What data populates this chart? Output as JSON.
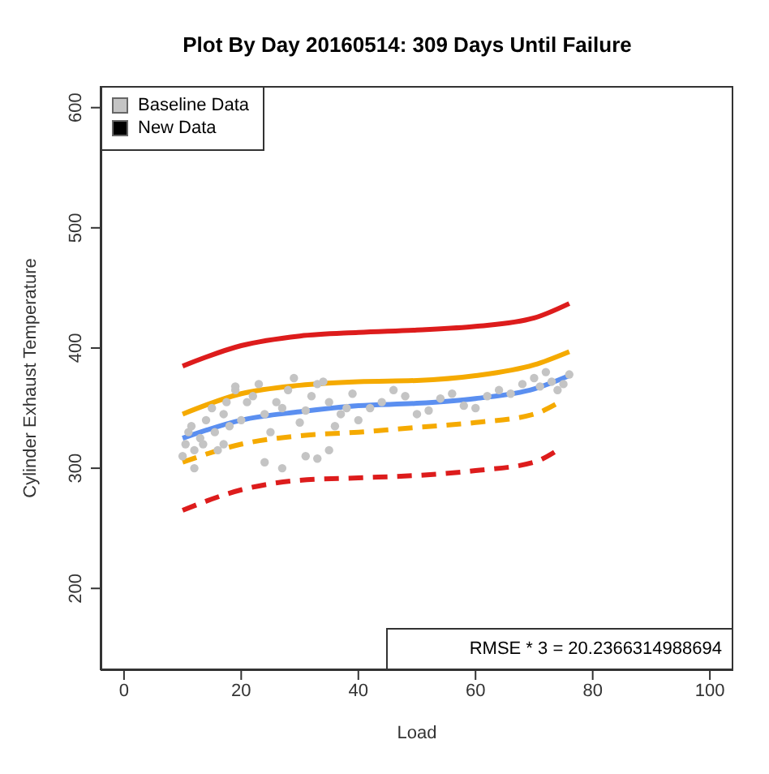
{
  "chart_data": {
    "type": "line",
    "title": "Plot By Day 20160514: 309 Days Until Failure",
    "xlabel": "Load",
    "ylabel": "Cylinder Exhaust Temperature",
    "xlim": [
      -4,
      104
    ],
    "xticks": [
      0,
      20,
      40,
      60,
      80,
      100
    ],
    "ylim": [
      132,
      618
    ],
    "yticks": [
      200,
      300,
      400,
      500,
      600
    ],
    "grid": false,
    "legend": "top left",
    "annotations": [
      "RMSE * 3 = 20.2366314988694"
    ],
    "series": [
      {
        "name": "Baseline Data",
        "type": "scatter",
        "marker": "circle",
        "color": "#c4c4c4",
        "x": [
          10,
          10.5,
          11,
          11.5,
          12,
          12,
          13,
          13.5,
          14,
          15,
          15.5,
          16,
          17,
          17.5,
          18,
          19,
          20,
          21,
          22,
          23,
          24,
          25,
          26,
          27,
          28,
          29,
          30,
          31,
          32,
          33,
          34,
          35,
          36,
          37,
          38,
          39,
          40,
          42,
          44,
          46,
          48,
          50,
          52,
          54,
          56,
          58,
          60,
          62,
          64,
          66,
          68,
          70,
          71,
          72,
          73,
          74,
          75,
          76,
          24,
          27,
          31,
          33,
          35,
          17,
          19
        ],
        "values": [
          310,
          320,
          330,
          335,
          300,
          315,
          325,
          320,
          340,
          350,
          330,
          315,
          345,
          355,
          335,
          365,
          340,
          355,
          360,
          370,
          345,
          330,
          355,
          350,
          365,
          375,
          338,
          348,
          360,
          370,
          372,
          355,
          335,
          345,
          350,
          362,
          340,
          350,
          355,
          365,
          360,
          345,
          348,
          358,
          362,
          352,
          350,
          360,
          365,
          362,
          370,
          375,
          368,
          380,
          372,
          365,
          370,
          378,
          305,
          300,
          310,
          308,
          315,
          320,
          368
        ]
      },
      {
        "name": "New Data",
        "type": "scatter",
        "marker": "square",
        "color": "#000000"
      },
      {
        "line_style": "solid",
        "color": "#dd1c1c",
        "x": [
          10,
          20,
          30,
          40,
          50,
          60,
          70,
          76
        ],
        "values": [
          385,
          402,
          410,
          413,
          415,
          418,
          425,
          437
        ]
      },
      {
        "line_style": "solid",
        "color": "#f5aa00",
        "x": [
          10,
          20,
          30,
          40,
          50,
          60,
          70,
          76
        ],
        "values": [
          345,
          362,
          369,
          372,
          373,
          377,
          386,
          397
        ]
      },
      {
        "line_style": "solid",
        "color": "#5b8ff0",
        "x": [
          10,
          20,
          30,
          40,
          50,
          60,
          70,
          76
        ],
        "values": [
          325,
          340,
          347,
          352,
          354,
          358,
          366,
          377
        ]
      },
      {
        "line_style": "dashed",
        "color": "#f5aa00",
        "x": [
          10,
          20,
          30,
          40,
          50,
          60,
          70,
          74
        ],
        "values": [
          305,
          320,
          327,
          330,
          334,
          338,
          345,
          354
        ]
      },
      {
        "line_style": "dashed",
        "color": "#dd1c1c",
        "x": [
          10,
          20,
          30,
          40,
          50,
          60,
          70,
          74
        ],
        "values": [
          265,
          282,
          290,
          292,
          294,
          298,
          305,
          315
        ]
      }
    ]
  }
}
